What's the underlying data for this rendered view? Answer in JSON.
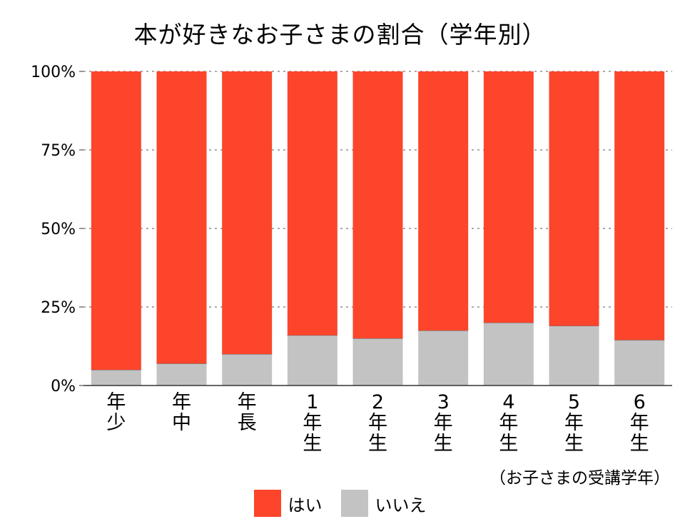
{
  "chart_data": {
    "type": "bar",
    "stacked": true,
    "title": "本が好きなお子さまの割合（学年別）",
    "xlabel": "（お子さまの受講学年）",
    "ylabel": "",
    "ylim": [
      0,
      100
    ],
    "yticks": [
      "0%",
      "25%",
      "50%",
      "75%",
      "100%"
    ],
    "ytick_values": [
      0,
      25,
      50,
      75,
      100
    ],
    "grid": true,
    "legend_position": "bottom",
    "categories": [
      [
        "年",
        "少"
      ],
      [
        "年",
        "中"
      ],
      [
        "年",
        "長"
      ],
      [
        "1",
        "年",
        "生"
      ],
      [
        "2",
        "年",
        "生"
      ],
      [
        "3",
        "年",
        "生"
      ],
      [
        "4",
        "年",
        "生"
      ],
      [
        "5",
        "年",
        "生"
      ],
      [
        "6",
        "年",
        "生"
      ]
    ],
    "series": [
      {
        "name": "いいえ",
        "color": "#c3c3c3",
        "values": [
          5,
          7,
          10,
          16,
          15,
          17.5,
          20,
          19,
          14.5
        ]
      },
      {
        "name": "はい",
        "color": "#fc452b",
        "values": [
          95,
          93,
          90,
          84,
          85,
          82.5,
          80,
          81,
          85.5
        ]
      }
    ],
    "legend": [
      {
        "name": "はい",
        "color": "#fc452b"
      },
      {
        "name": "いいえ",
        "color": "#c3c3c3"
      }
    ]
  }
}
